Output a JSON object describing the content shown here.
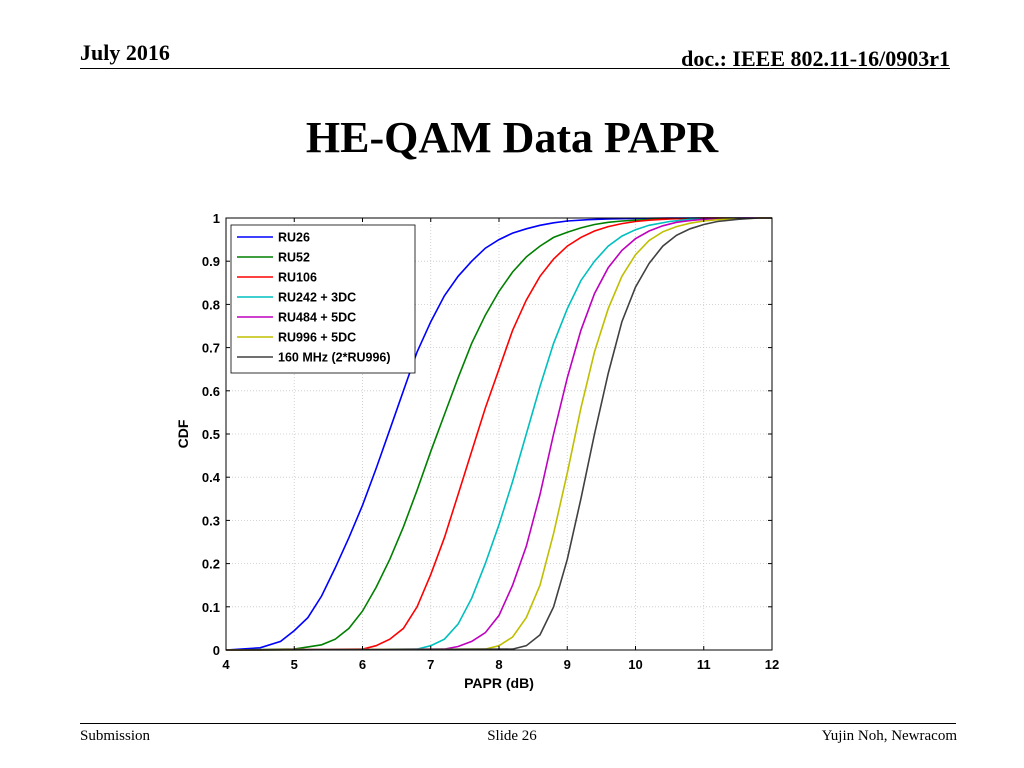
{
  "slide": {
    "date": "July 2016",
    "doc": "doc.: IEEE 802.11-16/0903r1",
    "title": "HE-QAM Data PAPR",
    "footer_left": "Submission",
    "footer_center": "Slide 26",
    "footer_right": "Yujin Noh, Newracom"
  },
  "chart_data": {
    "type": "line",
    "title": "",
    "xlabel": "PAPR (dB)",
    "ylabel": "CDF",
    "xlim": [
      4,
      12
    ],
    "ylim": [
      0,
      1
    ],
    "xticks": [
      4,
      5,
      6,
      7,
      8,
      9,
      10,
      11,
      12
    ],
    "yticks": [
      0,
      0.1,
      0.2,
      0.3,
      0.4,
      0.5,
      0.6,
      0.7,
      0.8,
      0.9,
      1
    ],
    "yticklabels": [
      "0",
      "0.1",
      "0.2",
      "0.3",
      "0.4",
      "0.5",
      "0.6",
      "0.7",
      "0.8",
      "0.9",
      "1"
    ],
    "grid": true,
    "legend_position": "top-left",
    "series": [
      {
        "name": "RU26",
        "color": "#0000ff",
        "x": [
          4.0,
          4.5,
          4.8,
          5.0,
          5.2,
          5.4,
          5.6,
          5.8,
          6.0,
          6.2,
          6.4,
          6.6,
          6.8,
          7.0,
          7.2,
          7.4,
          7.6,
          7.8,
          8.0,
          8.2,
          8.4,
          8.6,
          8.8,
          9.0,
          9.3,
          9.6,
          10.0,
          10.5,
          11.0,
          12.0
        ],
        "y": [
          0.0,
          0.005,
          0.02,
          0.045,
          0.075,
          0.125,
          0.19,
          0.26,
          0.335,
          0.42,
          0.51,
          0.6,
          0.69,
          0.76,
          0.82,
          0.865,
          0.9,
          0.93,
          0.95,
          0.965,
          0.975,
          0.983,
          0.989,
          0.993,
          0.996,
          0.998,
          0.999,
          1.0,
          1.0,
          1.0
        ]
      },
      {
        "name": "RU52",
        "color": "#008000",
        "x": [
          4.0,
          5.0,
          5.4,
          5.6,
          5.8,
          6.0,
          6.2,
          6.4,
          6.6,
          6.8,
          7.0,
          7.2,
          7.4,
          7.6,
          7.8,
          8.0,
          8.2,
          8.4,
          8.6,
          8.8,
          9.0,
          9.2,
          9.4,
          9.6,
          9.8,
          10.0,
          10.3,
          10.6,
          11.0,
          12.0
        ],
        "y": [
          0.0,
          0.002,
          0.012,
          0.025,
          0.05,
          0.09,
          0.145,
          0.21,
          0.285,
          0.37,
          0.46,
          0.545,
          0.63,
          0.71,
          0.775,
          0.83,
          0.875,
          0.91,
          0.935,
          0.955,
          0.967,
          0.977,
          0.985,
          0.99,
          0.993,
          0.995,
          0.997,
          0.999,
          1.0,
          1.0
        ]
      },
      {
        "name": "RU106",
        "color": "#ff0000",
        "x": [
          4.0,
          6.0,
          6.2,
          6.4,
          6.6,
          6.8,
          7.0,
          7.2,
          7.4,
          7.6,
          7.8,
          8.0,
          8.2,
          8.4,
          8.6,
          8.8,
          9.0,
          9.2,
          9.4,
          9.6,
          9.8,
          10.0,
          10.2,
          10.5,
          11.0,
          11.5,
          12.0
        ],
        "y": [
          0.0,
          0.002,
          0.01,
          0.025,
          0.05,
          0.1,
          0.175,
          0.26,
          0.36,
          0.46,
          0.56,
          0.65,
          0.74,
          0.81,
          0.865,
          0.905,
          0.935,
          0.955,
          0.97,
          0.98,
          0.987,
          0.992,
          0.995,
          0.998,
          1.0,
          1.0,
          1.0
        ]
      },
      {
        "name": "RU242 + 3DC",
        "color": "#00bfbf",
        "x": [
          4.0,
          6.8,
          7.0,
          7.2,
          7.4,
          7.6,
          7.8,
          8.0,
          8.2,
          8.4,
          8.6,
          8.8,
          9.0,
          9.2,
          9.4,
          9.6,
          9.8,
          10.0,
          10.2,
          10.5,
          10.8,
          11.0,
          11.5,
          12.0
        ],
        "y": [
          0.0,
          0.002,
          0.01,
          0.025,
          0.06,
          0.12,
          0.2,
          0.29,
          0.39,
          0.5,
          0.61,
          0.71,
          0.79,
          0.855,
          0.9,
          0.935,
          0.958,
          0.973,
          0.983,
          0.992,
          0.997,
          0.999,
          1.0,
          1.0
        ]
      },
      {
        "name": "RU484 + 5DC",
        "color": "#bf00bf",
        "x": [
          4.0,
          7.2,
          7.4,
          7.6,
          7.8,
          8.0,
          8.2,
          8.4,
          8.6,
          8.8,
          9.0,
          9.2,
          9.4,
          9.6,
          9.8,
          10.0,
          10.2,
          10.4,
          10.6,
          10.8,
          11.0,
          11.3,
          11.6,
          12.0
        ],
        "y": [
          0.0,
          0.002,
          0.008,
          0.02,
          0.04,
          0.08,
          0.15,
          0.24,
          0.36,
          0.5,
          0.63,
          0.74,
          0.825,
          0.885,
          0.925,
          0.952,
          0.97,
          0.982,
          0.99,
          0.994,
          0.997,
          0.999,
          1.0,
          1.0
        ]
      },
      {
        "name": "RU996 + 5DC",
        "color": "#bfbf00",
        "x": [
          4.0,
          7.8,
          8.0,
          8.2,
          8.4,
          8.6,
          8.8,
          9.0,
          9.2,
          9.4,
          9.6,
          9.8,
          10.0,
          10.2,
          10.4,
          10.6,
          10.8,
          11.0,
          11.2,
          11.5,
          11.8,
          12.0
        ],
        "y": [
          0.0,
          0.002,
          0.01,
          0.03,
          0.075,
          0.15,
          0.27,
          0.41,
          0.56,
          0.69,
          0.79,
          0.865,
          0.915,
          0.948,
          0.968,
          0.98,
          0.988,
          0.993,
          0.996,
          0.998,
          1.0,
          1.0
        ]
      },
      {
        "name": "160 MHz (2*RU996)",
        "color": "#404040",
        "x": [
          4.0,
          8.2,
          8.4,
          8.6,
          8.8,
          9.0,
          9.2,
          9.4,
          9.6,
          9.8,
          10.0,
          10.2,
          10.4,
          10.6,
          10.8,
          11.0,
          11.2,
          11.5,
          11.8,
          12.0
        ],
        "y": [
          0.0,
          0.002,
          0.01,
          0.035,
          0.1,
          0.21,
          0.35,
          0.5,
          0.64,
          0.76,
          0.84,
          0.895,
          0.935,
          0.96,
          0.975,
          0.985,
          0.992,
          0.997,
          1.0,
          1.0
        ]
      }
    ]
  }
}
